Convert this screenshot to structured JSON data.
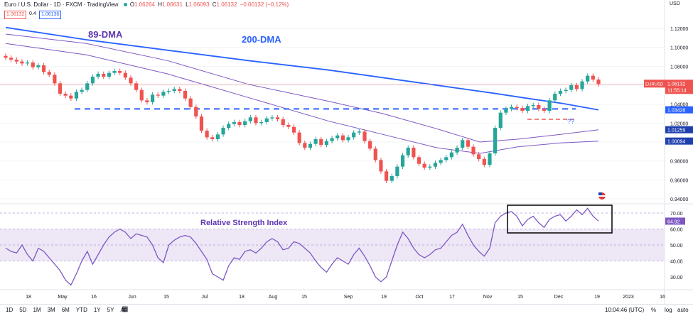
{
  "header": {
    "title": "Euro / U.S. Dollar · 1D · FXCM · TradingView",
    "ohlc": {
      "o_label": "O",
      "o": "1.06264",
      "h_label": "H",
      "h": "1.06631",
      "l_label": "L",
      "l": "1.06093",
      "c_label": "C",
      "c": "1.06132",
      "chg": "−0.00132 (−0.12%)"
    },
    "bid": "1.06132",
    "spread": "0.4",
    "ask": "1.06136",
    "currency": "USD"
  },
  "chart_data": [
    {
      "type": "candlestick",
      "title": "Euro / U.S. Dollar · 1D · FXCM",
      "y_ticks": [
        "1.12000",
        "1.10000",
        "1.08000",
        "1.06000",
        "1.04000",
        "1.02000",
        "1.00000",
        "0.98000",
        "0.96000",
        "0.94000"
      ],
      "y_tick_values": [
        1.12,
        1.1,
        1.08,
        1.06,
        1.04,
        1.02,
        1.0,
        0.98,
        0.96,
        0.94
      ],
      "x_ticks": [
        "18",
        "May",
        "16",
        "Jun",
        "15",
        "Jul",
        "18",
        "Aug",
        "15",
        "Sep",
        "19",
        "Oct",
        "17",
        "Nov",
        "15",
        "Dec",
        "19",
        "2023",
        "16"
      ],
      "price_path": [
        1.089,
        1.087,
        1.085,
        1.083,
        1.084,
        1.079,
        1.081,
        1.074,
        1.071,
        1.062,
        1.051,
        1.049,
        1.046,
        1.053,
        1.055,
        1.062,
        1.069,
        1.072,
        1.069,
        1.073,
        1.075,
        1.073,
        1.068,
        1.062,
        1.055,
        1.044,
        1.042,
        1.05,
        1.049,
        1.053,
        1.054,
        1.056,
        1.054,
        1.046,
        1.037,
        1.027,
        1.012,
        1.005,
        1.003,
        1.008,
        1.015,
        1.019,
        1.021,
        1.018,
        1.022,
        1.026,
        1.02,
        1.021,
        1.025,
        1.026,
        1.024,
        1.018,
        1.016,
        1.01,
        0.999,
        0.994,
        0.998,
        1.003,
        0.997,
        1.001,
        1.004,
        1.007,
        1.002,
        1.005,
        1.01,
        1.011,
        1.001,
        0.993,
        0.981,
        0.969,
        0.959,
        0.964,
        0.974,
        0.986,
        0.994,
        0.984,
        0.977,
        0.973,
        0.974,
        0.978,
        0.981,
        0.984,
        0.989,
        0.994,
        1.002,
        0.995,
        0.987,
        0.982,
        0.976,
        0.988,
        1.015,
        1.031,
        1.035,
        1.037,
        1.036,
        1.033,
        1.038,
        1.039,
        1.035,
        1.033,
        1.044,
        1.051,
        1.054,
        1.055,
        1.06,
        1.056,
        1.064,
        1.07,
        1.066,
        1.061
      ],
      "series": [
        {
          "name": "200-DMA",
          "color": "#2962ff",
          "points": [
            [
              0,
              1.121
            ],
            [
              15,
              1.108
            ],
            [
              30,
              1.097
            ],
            [
              45,
              1.086
            ],
            [
              60,
              1.076
            ],
            [
              75,
              1.064
            ],
            [
              90,
              1.052
            ],
            [
              97,
              1.046
            ],
            [
              103,
              1.041
            ],
            [
              110,
              1.034
            ]
          ],
          "last": "1.03428"
        },
        {
          "name": "89-DMA",
          "color": "#7e57c2",
          "points": [
            [
              0,
              1.114
            ],
            [
              15,
              1.104
            ],
            [
              30,
              1.086
            ],
            [
              45,
              1.061
            ],
            [
              60,
              1.043
            ],
            [
              70,
              1.03
            ],
            [
              80,
              1.014
            ],
            [
              88,
              1.0
            ],
            [
              95,
              1.003
            ],
            [
              103,
              1.008
            ],
            [
              110,
              1.013
            ]
          ],
          "last": "1.01259"
        },
        {
          "name": "",
          "color": "#7e57c2",
          "points": [
            [
              0,
              1.104
            ],
            [
              15,
              1.092
            ],
            [
              30,
              1.072
            ],
            [
              45,
              1.047
            ],
            [
              60,
              1.022
            ],
            [
              70,
              1.008
            ],
            [
              80,
              0.994
            ],
            [
              88,
              0.988
            ],
            [
              95,
              0.995
            ],
            [
              103,
              0.999
            ],
            [
              110,
              1.001
            ]
          ],
          "last": "1.00094"
        }
      ],
      "support_level": 1.035,
      "resistance_short": 1.024,
      "last_price_label": {
        "symbol": "EURUSD",
        "price": "1.06132",
        "countdown": "11:55:14"
      },
      "annotations": {
        "ma_89": "89-DMA",
        "ma_200": "200-DMA",
        "question": "??"
      }
    },
    {
      "type": "line",
      "title": "Relative Strength Index",
      "y_ticks": [
        "70.00",
        "60.00",
        "50.00",
        "40.00",
        "30.00"
      ],
      "y_tick_values": [
        70,
        60,
        50,
        40,
        30
      ],
      "band": [
        40,
        60
      ],
      "values": [
        48,
        46,
        45,
        50,
        44,
        40,
        48,
        46,
        42,
        38,
        34,
        28,
        25,
        32,
        40,
        46,
        38,
        44,
        50,
        55,
        58,
        60,
        58,
        54,
        57,
        56,
        55,
        50,
        42,
        39,
        50,
        53,
        55,
        56,
        55,
        51,
        46,
        41,
        32,
        30,
        28,
        37,
        42,
        41,
        46,
        47,
        45,
        48,
        52,
        54,
        52,
        47,
        48,
        52,
        51,
        48,
        45,
        40,
        36,
        33,
        38,
        42,
        40,
        38,
        44,
        48,
        43,
        37,
        30,
        27,
        30,
        40,
        50,
        58,
        54,
        48,
        44,
        42,
        44,
        47,
        48,
        52,
        56,
        58,
        63,
        56,
        50,
        46,
        43,
        48,
        64,
        68,
        70,
        71,
        68,
        62,
        66,
        68,
        64,
        61,
        66,
        68,
        69,
        65,
        68,
        72,
        69,
        73,
        68,
        65
      ],
      "last_label": "64.92"
    }
  ],
  "bottom": {
    "ranges": [
      "1D",
      "5D",
      "1M",
      "3M",
      "6M",
      "YTD",
      "1Y",
      "5Y",
      "All"
    ],
    "time": "10:04:46 (UTC)",
    "pct": "%",
    "log": "log",
    "auto": "auto"
  }
}
